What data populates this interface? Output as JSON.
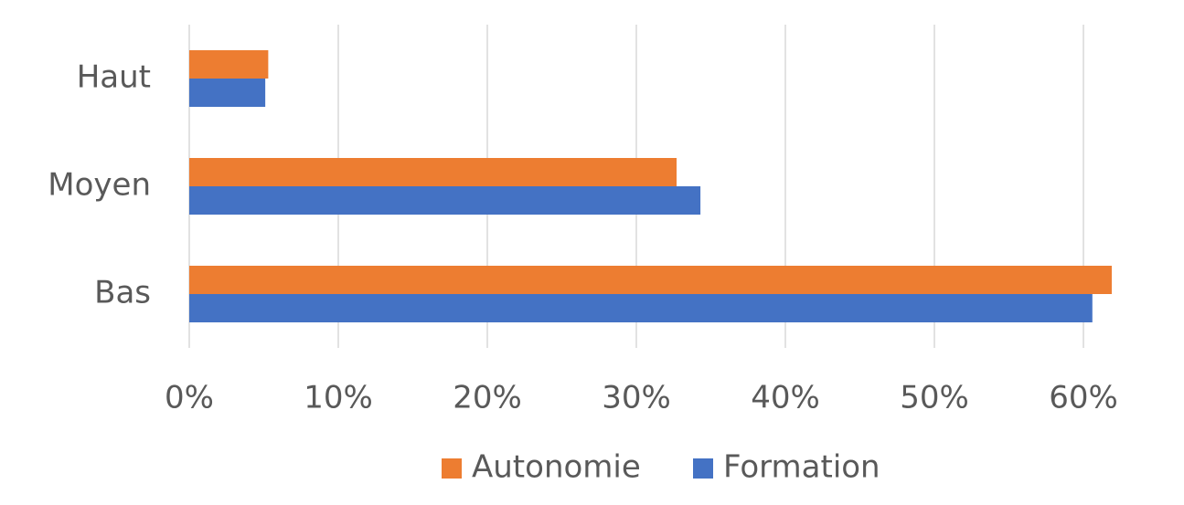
{
  "chart_data": {
    "type": "hbar",
    "categories": [
      "Haut",
      "Moyen",
      "Bas"
    ],
    "series": [
      {
        "name": "Autonomie",
        "color": "#ed7d31",
        "values": [
          5.3,
          32.7,
          61.9
        ]
      },
      {
        "name": "Formation",
        "color": "#4472c4",
        "values": [
          5.1,
          34.3,
          60.6
        ]
      }
    ],
    "xlim": [
      0,
      62
    ],
    "xticks": [
      {
        "value": 0,
        "label": "0%"
      },
      {
        "value": 10,
        "label": "10%"
      },
      {
        "value": 20,
        "label": "20%"
      },
      {
        "value": 30,
        "label": "30%"
      },
      {
        "value": 40,
        "label": "40%"
      },
      {
        "value": 50,
        "label": "50%"
      },
      {
        "value": 60,
        "label": "60%"
      }
    ],
    "grid": true,
    "legend": "bottom"
  }
}
